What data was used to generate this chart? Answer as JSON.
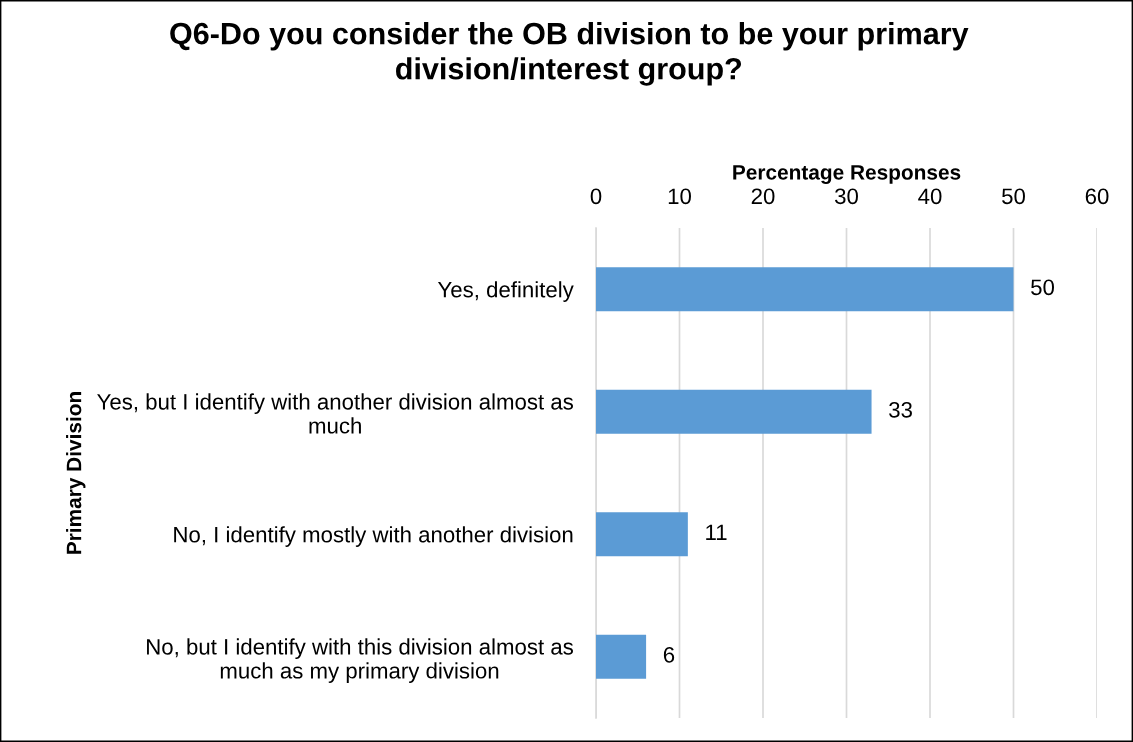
{
  "chart_data": {
    "type": "bar",
    "orientation": "horizontal",
    "title": "Q6-Do you consider the OB division to be your primary\ndivision/interest group?",
    "xlabel": "Percentage Responses",
    "ylabel": "Primary Division",
    "categories": [
      "Yes, definitely",
      "Yes, but I identify with another division almost as\nmuch",
      "No, I identify mostly with another division",
      "No, but I identify with this division almost as\nmuch as my primary division"
    ],
    "values": [
      50,
      33,
      11,
      6
    ],
    "color": "#5b9bd5",
    "xlim": [
      0,
      60
    ],
    "xticks": [
      0,
      10,
      20,
      30,
      40,
      50,
      60
    ],
    "grid": "x",
    "data_labels": true
  }
}
